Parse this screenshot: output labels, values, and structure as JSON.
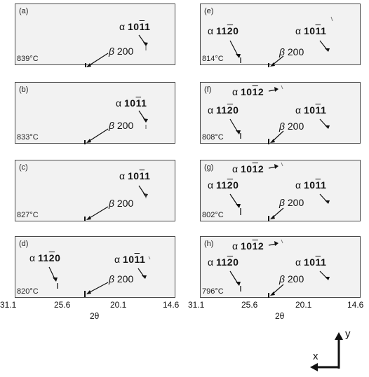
{
  "panels": [
    {
      "id": "(a)",
      "temp": "839°C",
      "peaks": [
        {
          "label": "α 10",
          "bar": "1",
          "tail": "1",
          "x": 207,
          "y": 64
        },
        {
          "label": "β 200",
          "x": 122,
          "y": 88
        }
      ]
    },
    {
      "id": "(b)",
      "temp": "833°C",
      "peaks": [
        {
          "label": "α 10",
          "bar": "1",
          "tail": "1",
          "x": 207,
          "y": 64
        },
        {
          "label": "β 200",
          "x": 122,
          "y": 88
        }
      ]
    },
    {
      "id": "(c)",
      "temp": "827°C",
      "peaks": [
        {
          "label": "α 10",
          "bar": "1",
          "tail": "1",
          "x": 207,
          "y": 64
        },
        {
          "label": "β 200",
          "x": 122,
          "y": 88
        }
      ]
    },
    {
      "id": "(d)",
      "temp": "820°C",
      "peaks": [
        {
          "label": "α 11",
          "bar": "2",
          "tail": "0",
          "x": 82,
          "y": 76
        },
        {
          "label": "α 10",
          "bar": "1",
          "tail": "1",
          "x": 207,
          "y": 64
        },
        {
          "label": "β 200",
          "x": 122,
          "y": 88
        }
      ]
    },
    {
      "id": "(e)",
      "temp": "814°C",
      "peaks": [
        {
          "label": "α 11",
          "bar": "2",
          "tail": "0",
          "x": 58,
          "y": 76
        },
        {
          "label": "α 10",
          "bar": "1",
          "tail": "1",
          "x": 185,
          "y": 64
        },
        {
          "label": "β 200",
          "x": 97,
          "y": 88
        }
      ]
    },
    {
      "id": "(f)",
      "temp": "808°C",
      "peaks": [
        {
          "label": "α 10",
          "bar": "1",
          "tail": "2",
          "x": 117,
          "y": 5
        },
        {
          "label": "α 11",
          "bar": "2",
          "tail": "0",
          "x": 58,
          "y": 76
        },
        {
          "label": "α 10",
          "bar": "1",
          "tail": "1",
          "x": 185,
          "y": 64
        },
        {
          "label": "β 200",
          "x": 97,
          "y": 88
        }
      ]
    },
    {
      "id": "(g)",
      "temp": "802°C",
      "peaks": [
        {
          "label": "α 10",
          "bar": "1",
          "tail": "2",
          "x": 117,
          "y": 5
        },
        {
          "label": "α 11",
          "bar": "2",
          "tail": "0",
          "x": 58,
          "y": 76
        },
        {
          "label": "α 10",
          "bar": "1",
          "tail": "1",
          "x": 185,
          "y": 64
        },
        {
          "label": "β 200",
          "x": 97,
          "y": 88
        }
      ]
    },
    {
      "id": "(h)",
      "temp": "796°C",
      "peaks": [
        {
          "label": "α 10",
          "bar": "1",
          "tail": "2",
          "x": 117,
          "y": 5
        },
        {
          "label": "α 11",
          "bar": "2",
          "tail": "0",
          "x": 58,
          "y": 76
        },
        {
          "label": "α 10",
          "bar": "1",
          "tail": "1",
          "x": 185,
          "y": 64
        },
        {
          "label": "β 200",
          "x": 97,
          "y": 88
        }
      ]
    }
  ],
  "xticks": [
    "31.1",
    "25.6",
    "20.1",
    "14.6"
  ],
  "xlabel": "2θ",
  "axes": {
    "x": "x",
    "y": "y"
  }
}
